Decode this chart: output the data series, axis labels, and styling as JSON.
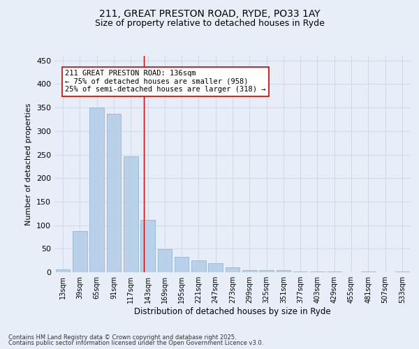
{
  "title1": "211, GREAT PRESTON ROAD, RYDE, PO33 1AY",
  "title2": "Size of property relative to detached houses in Ryde",
  "xlabel": "Distribution of detached houses by size in Ryde",
  "ylabel": "Number of detached properties",
  "categories": [
    "13sqm",
    "39sqm",
    "65sqm",
    "91sqm",
    "117sqm",
    "143sqm",
    "169sqm",
    "195sqm",
    "221sqm",
    "247sqm",
    "273sqm",
    "299sqm",
    "325sqm",
    "351sqm",
    "377sqm",
    "403sqm",
    "429sqm",
    "455sqm",
    "481sqm",
    "507sqm",
    "533sqm"
  ],
  "values": [
    6,
    88,
    350,
    337,
    247,
    112,
    49,
    33,
    25,
    20,
    10,
    5,
    5,
    4,
    2,
    2,
    1,
    0,
    1,
    0,
    2
  ],
  "bar_color": "#b8d0e8",
  "bar_edge_color": "#8ab0d0",
  "vline_x": 4.77,
  "vline_color": "#cc0000",
  "annotation_text": "211 GREAT PRESTON ROAD: 136sqm\n← 75% of detached houses are smaller (958)\n25% of semi-detached houses are larger (318) →",
  "annotation_box_color": "#ffffff",
  "annotation_box_edge": "#cc0000",
  "grid_color": "#d0d8e8",
  "background_color": "#e8eef8",
  "footer1": "Contains HM Land Registry data © Crown copyright and database right 2025.",
  "footer2": "Contains public sector information licensed under the Open Government Licence v3.0.",
  "ylim": [
    0,
    460
  ],
  "yticks": [
    0,
    50,
    100,
    150,
    200,
    250,
    300,
    350,
    400,
    450
  ],
  "title_fontsize": 10,
  "subtitle_fontsize": 9,
  "annot_fontsize": 7.5,
  "ylabel_fontsize": 8,
  "xlabel_fontsize": 8.5,
  "xtick_fontsize": 7,
  "ytick_fontsize": 8
}
